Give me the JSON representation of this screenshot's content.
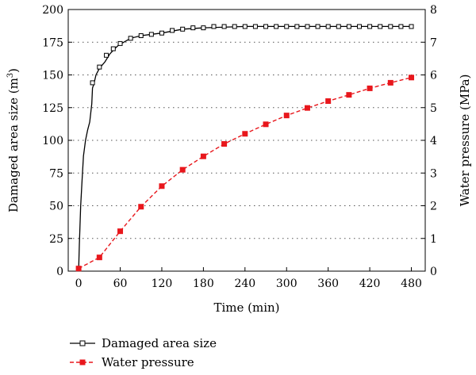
{
  "chart_data": {
    "type": "line",
    "xlabel": "Time (min)",
    "x_ticks": [
      0,
      60,
      120,
      180,
      240,
      300,
      360,
      420,
      480
    ],
    "xlim": [
      -15,
      500
    ],
    "y_left": {
      "label": "Damaged area size (m",
      "label_sup": "3",
      "label_end": ")",
      "lim": [
        0,
        200
      ],
      "ticks": [
        0,
        25,
        50,
        75,
        100,
        125,
        150,
        175,
        200
      ]
    },
    "y_right": {
      "label": "Water pressure (MPa)",
      "lim": [
        0,
        8
      ],
      "ticks": [
        0,
        1,
        2,
        3,
        4,
        5,
        6,
        7,
        8
      ]
    },
    "grid": true,
    "legend_position": "bottom-left",
    "series": [
      {
        "name": "Damaged area size",
        "axis": "left",
        "color": "#000000",
        "marker": "open-square",
        "line": "solid",
        "step_line": [
          [
            0,
            0
          ],
          [
            1,
            20
          ],
          [
            3,
            50
          ],
          [
            5,
            70
          ],
          [
            7,
            88
          ],
          [
            10,
            100
          ],
          [
            13,
            108
          ],
          [
            16,
            114
          ],
          [
            19,
            128
          ],
          [
            20,
            140
          ],
          [
            22,
            143
          ],
          [
            25,
            150
          ],
          [
            30,
            155
          ],
          [
            38,
            160
          ],
          [
            45,
            166
          ],
          [
            52,
            170
          ],
          [
            58,
            173
          ],
          [
            65,
            175
          ],
          [
            75,
            178
          ],
          [
            90,
            180
          ],
          [
            105,
            181
          ],
          [
            120,
            182
          ],
          [
            150,
            185
          ],
          [
            180,
            186
          ],
          [
            240,
            187
          ],
          [
            300,
            187
          ],
          [
            360,
            187
          ],
          [
            420,
            187
          ],
          [
            480,
            187
          ]
        ],
        "markers": [
          [
            20,
            144
          ],
          [
            30,
            156
          ],
          [
            40,
            165
          ],
          [
            50,
            170
          ],
          [
            60,
            174
          ],
          [
            75,
            178
          ],
          [
            90,
            180
          ],
          [
            105,
            181
          ],
          [
            120,
            182
          ],
          [
            135,
            184
          ],
          [
            150,
            185
          ],
          [
            165,
            186
          ],
          [
            180,
            186
          ],
          [
            195,
            187
          ],
          [
            210,
            187
          ],
          [
            225,
            187
          ],
          [
            240,
            187
          ],
          [
            255,
            187
          ],
          [
            270,
            187
          ],
          [
            285,
            187
          ],
          [
            300,
            187
          ],
          [
            315,
            187
          ],
          [
            330,
            187
          ],
          [
            345,
            187
          ],
          [
            360,
            187
          ],
          [
            375,
            187
          ],
          [
            390,
            187
          ],
          [
            405,
            187
          ],
          [
            420,
            187
          ],
          [
            435,
            187
          ],
          [
            450,
            187
          ],
          [
            465,
            187
          ],
          [
            480,
            187
          ]
        ]
      },
      {
        "name": "Water pressure",
        "axis": "right",
        "color": "#e8171c",
        "marker": "filled-square",
        "line": "dashed",
        "points": [
          [
            0,
            0.08
          ],
          [
            30,
            0.42
          ],
          [
            60,
            1.22
          ],
          [
            90,
            1.97
          ],
          [
            120,
            2.6
          ],
          [
            150,
            3.1
          ],
          [
            180,
            3.51
          ],
          [
            210,
            3.89
          ],
          [
            240,
            4.2
          ],
          [
            270,
            4.49
          ],
          [
            300,
            4.76
          ],
          [
            330,
            4.99
          ],
          [
            360,
            5.2
          ],
          [
            390,
            5.39
          ],
          [
            420,
            5.59
          ],
          [
            450,
            5.76
          ],
          [
            480,
            5.92
          ]
        ]
      }
    ]
  }
}
